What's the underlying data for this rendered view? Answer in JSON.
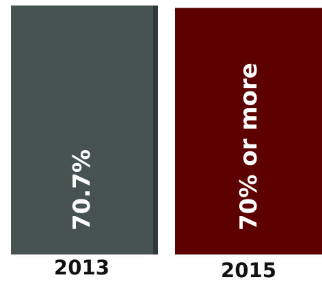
{
  "chart_data": {
    "type": "bar",
    "categories": [
      "2013",
      "2015"
    ],
    "values": [
      70.7,
      70
    ],
    "value_labels": [
      "70.7%",
      "70% or more"
    ],
    "colors": [
      "#465351",
      "#5c0000"
    ]
  }
}
